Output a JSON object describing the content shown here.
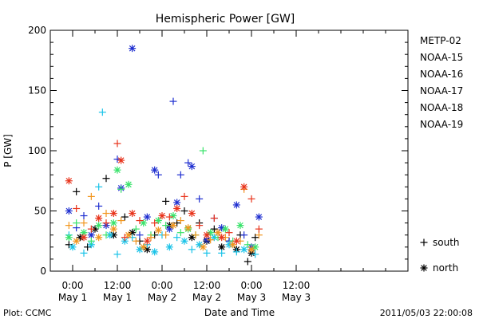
{
  "chart_data": {
    "type": "scatter",
    "title": "Hemispheric Power [GW]",
    "ylabel": "P [GW]",
    "xlabel": "Date and Time",
    "ylim": [
      0,
      200
    ],
    "yticks": [
      0,
      50,
      100,
      150,
      200
    ],
    "xlim_hours": [
      -6,
      90
    ],
    "xticks": [
      {
        "h": 0,
        "time": "0:00",
        "date": "May 1"
      },
      {
        "h": 12,
        "time": "12:00",
        "date": "May 1"
      },
      {
        "h": 24,
        "time": "0:00",
        "date": "May 2"
      },
      {
        "h": 36,
        "time": "12:00",
        "date": "May 2"
      },
      {
        "h": 48,
        "time": "0:00",
        "date": "May 3"
      },
      {
        "h": 60,
        "time": "12:00",
        "date": "May 3"
      }
    ],
    "legend_position": "right",
    "marker_legend": [
      {
        "symbol": "+",
        "label": "south"
      },
      {
        "symbol": "*",
        "label": "north"
      }
    ],
    "footer_left": "Plot: CCMC",
    "footer_right": "2011/05/03 22:00:08",
    "series": [
      {
        "name": "METP-02",
        "color": "#000000",
        "points": [
          [
            -1,
            22,
            "+"
          ],
          [
            1,
            66,
            "+"
          ],
          [
            2,
            28,
            "*"
          ],
          [
            4,
            20,
            "+"
          ],
          [
            6,
            35,
            "*"
          ],
          [
            9,
            77,
            "+"
          ],
          [
            11,
            30,
            "*"
          ],
          [
            14,
            45,
            "+"
          ],
          [
            16,
            32,
            "*"
          ],
          [
            18,
            25,
            "+"
          ],
          [
            20,
            18,
            "*"
          ],
          [
            22,
            30,
            "+"
          ],
          [
            25,
            58,
            "+"
          ],
          [
            26,
            38,
            "*"
          ],
          [
            28,
            40,
            "+"
          ],
          [
            30,
            50,
            "+"
          ],
          [
            32,
            28,
            "*"
          ],
          [
            34,
            40,
            "+"
          ],
          [
            36,
            25,
            "*"
          ],
          [
            38,
            35,
            "+"
          ],
          [
            40,
            20,
            "*"
          ],
          [
            42,
            25,
            "+"
          ],
          [
            44,
            18,
            "*"
          ],
          [
            45,
            30,
            "+"
          ],
          [
            47,
            8,
            "+"
          ],
          [
            48,
            15,
            "*"
          ],
          [
            49,
            28,
            "+"
          ]
        ]
      },
      {
        "name": "NOAA-15",
        "color": "#1f2fd0",
        "points": [
          [
            -1,
            50,
            "*"
          ],
          [
            1,
            36,
            "+"
          ],
          [
            3,
            46,
            "+"
          ],
          [
            5,
            30,
            "*"
          ],
          [
            7,
            54,
            "+"
          ],
          [
            9,
            38,
            "*"
          ],
          [
            12,
            93,
            "+"
          ],
          [
            13,
            69,
            "*"
          ],
          [
            16,
            185,
            "*"
          ],
          [
            18,
            30,
            "+"
          ],
          [
            20,
            45,
            "*"
          ],
          [
            22,
            84,
            "*"
          ],
          [
            23,
            80,
            "+"
          ],
          [
            26,
            35,
            "*"
          ],
          [
            27,
            141,
            "+"
          ],
          [
            28,
            57,
            "*"
          ],
          [
            29,
            80,
            "+"
          ],
          [
            31,
            90,
            "+"
          ],
          [
            32,
            87,
            "*"
          ],
          [
            34,
            60,
            "+"
          ],
          [
            36,
            26,
            "*"
          ],
          [
            38,
            44,
            "+"
          ],
          [
            40,
            36,
            "*"
          ],
          [
            42,
            25,
            "+"
          ],
          [
            44,
            55,
            "*"
          ],
          [
            46,
            30,
            "+"
          ],
          [
            48,
            20,
            "*"
          ],
          [
            50,
            45,
            "*"
          ]
        ]
      },
      {
        "name": "NOAA-16",
        "color": "#19c3e8",
        "points": [
          [
            -1,
            30,
            "+"
          ],
          [
            0,
            20,
            "*"
          ],
          [
            3,
            15,
            "+"
          ],
          [
            5,
            22,
            "*"
          ],
          [
            7,
            70,
            "+"
          ],
          [
            8,
            132,
            "+"
          ],
          [
            10,
            30,
            "*"
          ],
          [
            12,
            14,
            "+"
          ],
          [
            14,
            25,
            "*"
          ],
          [
            16,
            28,
            "+"
          ],
          [
            18,
            18,
            "*"
          ],
          [
            20,
            22,
            "+"
          ],
          [
            22,
            16,
            "*"
          ],
          [
            24,
            30,
            "+"
          ],
          [
            26,
            20,
            "*"
          ],
          [
            28,
            28,
            "+"
          ],
          [
            30,
            25,
            "*"
          ],
          [
            32,
            18,
            "+"
          ],
          [
            34,
            22,
            "*"
          ],
          [
            36,
            15,
            "+"
          ],
          [
            38,
            28,
            "*"
          ],
          [
            40,
            15,
            "+"
          ],
          [
            42,
            22,
            "*"
          ],
          [
            44,
            16,
            "+"
          ],
          [
            46,
            18,
            "*"
          ],
          [
            49,
            14,
            "+"
          ]
        ]
      },
      {
        "name": "NOAA-17",
        "color": "#38e36a",
        "points": [
          [
            -1,
            28,
            "*"
          ],
          [
            1,
            40,
            "+"
          ],
          [
            3,
            32,
            "*"
          ],
          [
            5,
            25,
            "+"
          ],
          [
            7,
            38,
            "*"
          ],
          [
            9,
            30,
            "+"
          ],
          [
            11,
            40,
            "*"
          ],
          [
            12,
            84,
            "*"
          ],
          [
            13,
            68,
            "+"
          ],
          [
            15,
            72,
            "*"
          ],
          [
            17,
            35,
            "+"
          ],
          [
            19,
            40,
            "*"
          ],
          [
            21,
            30,
            "+"
          ],
          [
            23,
            42,
            "*"
          ],
          [
            25,
            38,
            "+"
          ],
          [
            27,
            46,
            "*"
          ],
          [
            29,
            32,
            "+"
          ],
          [
            31,
            35,
            "*"
          ],
          [
            33,
            30,
            "+"
          ],
          [
            35,
            100,
            "+"
          ],
          [
            37,
            32,
            "*"
          ],
          [
            39,
            28,
            "+"
          ],
          [
            41,
            35,
            "*"
          ],
          [
            43,
            25,
            "+"
          ],
          [
            45,
            38,
            "*"
          ],
          [
            47,
            22,
            "+"
          ],
          [
            49,
            20,
            "*"
          ]
        ]
      },
      {
        "name": "NOAA-18",
        "color": "#f2961e",
        "points": [
          [
            -1,
            38,
            "+"
          ],
          [
            1,
            25,
            "*"
          ],
          [
            3,
            40,
            "+"
          ],
          [
            5,
            62,
            "+"
          ],
          [
            7,
            28,
            "*"
          ],
          [
            9,
            48,
            "+"
          ],
          [
            11,
            35,
            "*"
          ],
          [
            13,
            42,
            "+"
          ],
          [
            15,
            30,
            "*"
          ],
          [
            17,
            25,
            "+"
          ],
          [
            19,
            20,
            "*"
          ],
          [
            21,
            28,
            "+"
          ],
          [
            23,
            34,
            "*"
          ],
          [
            25,
            30,
            "+"
          ],
          [
            27,
            38,
            "*"
          ],
          [
            29,
            42,
            "+"
          ],
          [
            31,
            36,
            "*"
          ],
          [
            33,
            30,
            "+"
          ],
          [
            35,
            20,
            "*"
          ],
          [
            37,
            26,
            "+"
          ],
          [
            39,
            32,
            "*"
          ],
          [
            41,
            28,
            "+"
          ],
          [
            43,
            22,
            "*"
          ],
          [
            45,
            25,
            "+"
          ],
          [
            46,
            68,
            "+"
          ],
          [
            48,
            18,
            "*"
          ],
          [
            50,
            30,
            "+"
          ]
        ]
      },
      {
        "name": "NOAA-19",
        "color": "#e8341c",
        "points": [
          [
            -1,
            75,
            "*"
          ],
          [
            1,
            52,
            "+"
          ],
          [
            3,
            28,
            "*"
          ],
          [
            5,
            35,
            "+"
          ],
          [
            7,
            44,
            "*"
          ],
          [
            9,
            40,
            "+"
          ],
          [
            11,
            48,
            "*"
          ],
          [
            12,
            106,
            "+"
          ],
          [
            13,
            92,
            "*"
          ],
          [
            14,
            28,
            "+"
          ],
          [
            16,
            48,
            "*"
          ],
          [
            18,
            42,
            "+"
          ],
          [
            20,
            25,
            "*"
          ],
          [
            22,
            40,
            "+"
          ],
          [
            24,
            46,
            "*"
          ],
          [
            26,
            45,
            "+"
          ],
          [
            28,
            52,
            "*"
          ],
          [
            30,
            62,
            "+"
          ],
          [
            32,
            48,
            "*"
          ],
          [
            34,
            38,
            "+"
          ],
          [
            36,
            30,
            "*"
          ],
          [
            38,
            44,
            "+"
          ],
          [
            40,
            28,
            "*"
          ],
          [
            42,
            32,
            "+"
          ],
          [
            44,
            25,
            "*"
          ],
          [
            46,
            70,
            "*"
          ],
          [
            48,
            60,
            "+"
          ],
          [
            50,
            35,
            "+"
          ]
        ]
      }
    ]
  }
}
